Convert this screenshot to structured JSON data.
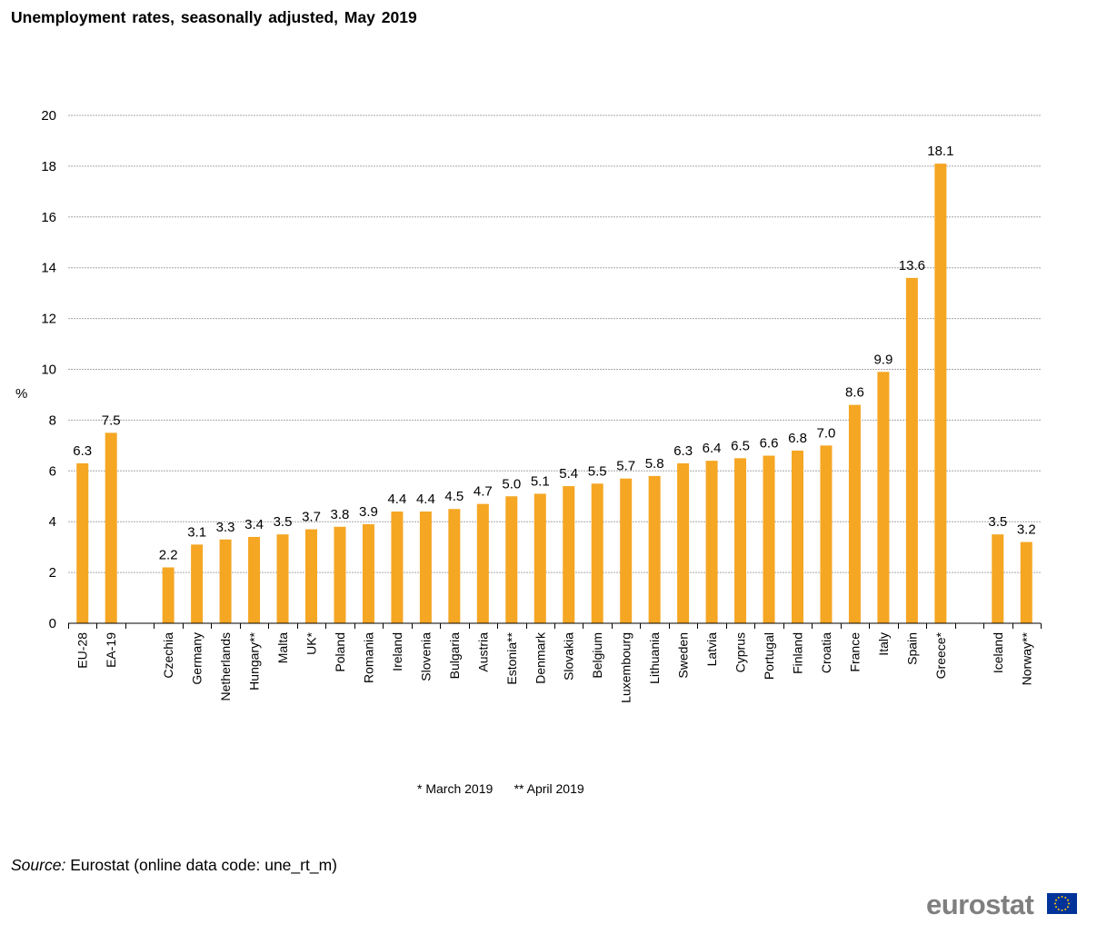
{
  "chart_data": {
    "type": "bar",
    "title": "Unemployment rates, seasonally adjusted, May 2019",
    "ylabel": "%",
    "xlabel": "",
    "ylim": [
      0,
      20
    ],
    "yticks": [
      "0",
      "2",
      "4",
      "6",
      "8",
      "10",
      "12",
      "14",
      "16",
      "18",
      "20"
    ],
    "grid": true,
    "bar_color": "#f5a623",
    "categories": [
      "EU-28",
      "EA-19",
      "",
      "Czechia",
      "Germany",
      "Netherlands",
      "Hungary**",
      "Malta",
      "UK*",
      "Poland",
      "Romania",
      "Ireland",
      "Slovenia",
      "Bulgaria",
      "Austria",
      "Estonia**",
      "Denmark",
      "Slovakia",
      "Belgium",
      "Luxembourg",
      "Lithuania",
      "Sweden",
      "Latvia",
      "Cyprus",
      "Portugal",
      "Finland",
      "Croatia",
      "France",
      "Italy",
      "Spain",
      "Greece*",
      "",
      "Iceland",
      "Norway**"
    ],
    "values": [
      6.3,
      7.5,
      null,
      2.2,
      3.1,
      3.3,
      3.4,
      3.5,
      3.7,
      3.8,
      3.9,
      4.4,
      4.4,
      4.5,
      4.7,
      5.0,
      5.1,
      5.4,
      5.5,
      5.7,
      5.8,
      6.3,
      6.4,
      6.5,
      6.6,
      6.8,
      7.0,
      8.6,
      9.9,
      13.6,
      18.1,
      null,
      3.5,
      3.2
    ],
    "data_labels": [
      "6.3",
      "7.5",
      "",
      "2.2",
      "3.1",
      "3.3",
      "3.4",
      "3.5",
      "3.7",
      "3.8",
      "3.9",
      "4.4",
      "4.4",
      "4.5",
      "4.7",
      "5.0",
      "5.1",
      "5.4",
      "5.5",
      "5.7",
      "5.8",
      "6.3",
      "6.4",
      "6.5",
      "6.6",
      "6.8",
      "7.0",
      "8.6",
      "9.9",
      "13.6",
      "18.1",
      "",
      "3.5",
      "3.2"
    ],
    "footnote": "* March 2019      ** April 2019"
  },
  "source": {
    "label": "Source:",
    "text": "Eurostat (online data code: une_rt_m)"
  },
  "logo": {
    "text": "eurostat",
    "flag_color": "#003399",
    "star_color": "#ffcc00"
  }
}
